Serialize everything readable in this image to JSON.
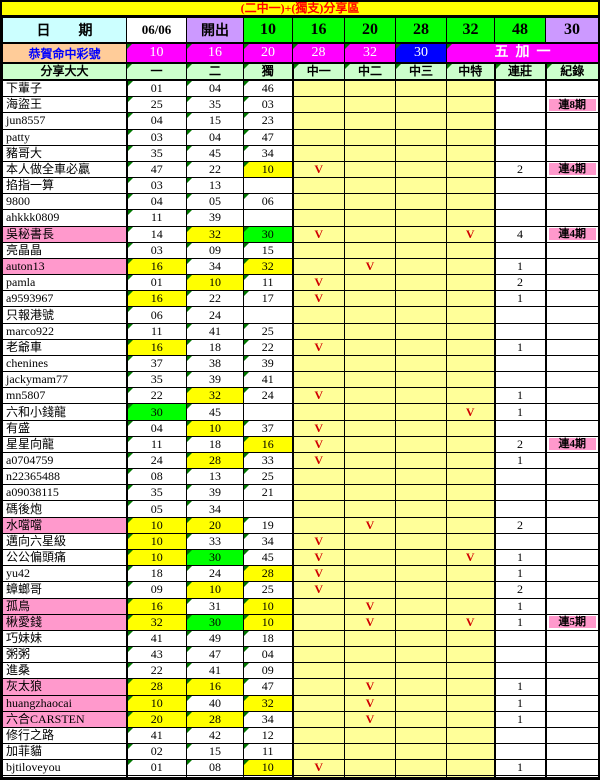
{
  "title": "(二中一)+(獨支)分享區",
  "date_row": {
    "label": "日　　期",
    "date": "06/06",
    "open_label": "開出",
    "numbers": [
      "10",
      "16",
      "20",
      "28",
      "32",
      "48"
    ],
    "special": "30"
  },
  "congrats_row": {
    "label": "恭賀命中彩號",
    "numbers": [
      "10",
      "16",
      "20",
      "28",
      "32"
    ],
    "special": "30",
    "extra": "五加一"
  },
  "columns": [
    "分享大大",
    "一",
    "二",
    "獨",
    "中一",
    "中二",
    "中三",
    "中特",
    "連莊",
    "紀錄"
  ],
  "colors": {
    "title_bg": "#FFFF00",
    "title_text": "#FF0000",
    "date_label_bg": "#CCFFFF",
    "open_bg": "#CC99FF",
    "drawn_number_bg": "#00FF00",
    "special_number_bg": "#CC99FF",
    "congrats_label_bg": "#FFCC99",
    "congrats_label_text": "#0000FF",
    "hit_number_bg": "#FF00FF",
    "special_hit_bg": "#0000FF",
    "column_header_bg": "#CCFFCC",
    "mid_column_bg": "#FFFF99",
    "match_highlight_bg": "#FFFF00",
    "special_match_bg": "#00FF00",
    "name_highlight_bg": "#FF99CC",
    "record_badge_bg": "#FF99CC",
    "mark_color": "#D00000"
  },
  "rows": [
    {
      "name": "下輩子",
      "hl": false,
      "nums": [
        [
          "01",
          "w"
        ],
        [
          "04",
          "w"
        ],
        [
          "46",
          "w"
        ]
      ],
      "marks": [
        "",
        "",
        "",
        ""
      ],
      "streak": "",
      "record": ""
    },
    {
      "name": "海盜王",
      "hl": false,
      "nums": [
        [
          "25",
          "w"
        ],
        [
          "35",
          "w"
        ],
        [
          "03",
          "w"
        ]
      ],
      "marks": [
        "",
        "",
        "",
        ""
      ],
      "streak": "",
      "record": "連8期"
    },
    {
      "name": "jun8557",
      "hl": false,
      "nums": [
        [
          "04",
          "w"
        ],
        [
          "15",
          "w"
        ],
        [
          "23",
          "w"
        ]
      ],
      "marks": [
        "",
        "",
        "",
        ""
      ],
      "streak": "",
      "record": ""
    },
    {
      "name": "patty",
      "hl": false,
      "nums": [
        [
          "03",
          "w"
        ],
        [
          "04",
          "w"
        ],
        [
          "47",
          "w"
        ]
      ],
      "marks": [
        "",
        "",
        "",
        ""
      ],
      "streak": "",
      "record": ""
    },
    {
      "name": "豬哥大",
      "hl": false,
      "nums": [
        [
          "35",
          "w"
        ],
        [
          "45",
          "w"
        ],
        [
          "34",
          "w"
        ]
      ],
      "marks": [
        "",
        "",
        "",
        ""
      ],
      "streak": "",
      "record": ""
    },
    {
      "name": "本人做全車必贏",
      "hl": false,
      "nums": [
        [
          "47",
          "w"
        ],
        [
          "22",
          "w"
        ],
        [
          "10",
          "y"
        ]
      ],
      "marks": [
        "V",
        "",
        "",
        ""
      ],
      "streak": "2",
      "record": "連4期"
    },
    {
      "name": "掐指一算",
      "hl": false,
      "nums": [
        [
          "03",
          "w"
        ],
        [
          "13",
          "w"
        ],
        [
          "",
          "w"
        ]
      ],
      "marks": [
        "",
        "",
        "",
        ""
      ],
      "streak": "",
      "record": ""
    },
    {
      "name": "9800",
      "hl": false,
      "nums": [
        [
          "04",
          "w"
        ],
        [
          "05",
          "w"
        ],
        [
          "06",
          "w"
        ]
      ],
      "marks": [
        "",
        "",
        "",
        ""
      ],
      "streak": "",
      "record": ""
    },
    {
      "name": "ahkkk0809",
      "hl": false,
      "nums": [
        [
          "11",
          "w"
        ],
        [
          "39",
          "w"
        ],
        [
          "",
          "w"
        ]
      ],
      "marks": [
        "",
        "",
        "",
        ""
      ],
      "streak": "",
      "record": ""
    },
    {
      "name": "吳秘書長",
      "hl": true,
      "nums": [
        [
          "14",
          "w"
        ],
        [
          "32",
          "y"
        ],
        [
          "30",
          "g"
        ]
      ],
      "marks": [
        "V",
        "",
        "",
        "V"
      ],
      "streak": "4",
      "record": "連4期"
    },
    {
      "name": "亮晶晶",
      "hl": false,
      "nums": [
        [
          "03",
          "w"
        ],
        [
          "09",
          "w"
        ],
        [
          "15",
          "w"
        ]
      ],
      "marks": [
        "",
        "",
        "",
        ""
      ],
      "streak": "",
      "record": ""
    },
    {
      "name": "auton13",
      "hl": true,
      "nums": [
        [
          "16",
          "y"
        ],
        [
          "34",
          "w"
        ],
        [
          "32",
          "y"
        ]
      ],
      "marks": [
        "",
        "V",
        "",
        ""
      ],
      "streak": "1",
      "record": ""
    },
    {
      "name": "pamla",
      "hl": false,
      "nums": [
        [
          "01",
          "w"
        ],
        [
          "10",
          "y"
        ],
        [
          "11",
          "w"
        ]
      ],
      "marks": [
        "V",
        "",
        "",
        ""
      ],
      "streak": "2",
      "record": ""
    },
    {
      "name": "a9593967",
      "hl": false,
      "nums": [
        [
          "16",
          "y"
        ],
        [
          "22",
          "w"
        ],
        [
          "17",
          "w"
        ]
      ],
      "marks": [
        "V",
        "",
        "",
        ""
      ],
      "streak": "1",
      "record": ""
    },
    {
      "name": "只報港號",
      "hl": false,
      "nums": [
        [
          "06",
          "w"
        ],
        [
          "24",
          "w"
        ],
        [
          "",
          "w"
        ]
      ],
      "marks": [
        "",
        "",
        "",
        ""
      ],
      "streak": "",
      "record": ""
    },
    {
      "name": "marco922",
      "hl": false,
      "nums": [
        [
          "11",
          "w"
        ],
        [
          "41",
          "w"
        ],
        [
          "25",
          "w"
        ]
      ],
      "marks": [
        "",
        "",
        "",
        ""
      ],
      "streak": "",
      "record": ""
    },
    {
      "name": "老爺車",
      "hl": false,
      "nums": [
        [
          "16",
          "y"
        ],
        [
          "18",
          "w"
        ],
        [
          "22",
          "w"
        ]
      ],
      "marks": [
        "V",
        "",
        "",
        ""
      ],
      "streak": "1",
      "record": ""
    },
    {
      "name": "chenines",
      "hl": false,
      "nums": [
        [
          "37",
          "w"
        ],
        [
          "38",
          "w"
        ],
        [
          "39",
          "w"
        ]
      ],
      "marks": [
        "",
        "",
        "",
        ""
      ],
      "streak": "",
      "record": ""
    },
    {
      "name": "jackymam77",
      "hl": false,
      "nums": [
        [
          "35",
          "w"
        ],
        [
          "39",
          "w"
        ],
        [
          "41",
          "w"
        ]
      ],
      "marks": [
        "",
        "",
        "",
        ""
      ],
      "streak": "",
      "record": ""
    },
    {
      "name": "mn5807",
      "hl": false,
      "nums": [
        [
          "22",
          "w"
        ],
        [
          "32",
          "y"
        ],
        [
          "24",
          "w"
        ]
      ],
      "marks": [
        "V",
        "",
        "",
        ""
      ],
      "streak": "1",
      "record": ""
    },
    {
      "name": "六和小錢龍",
      "hl": false,
      "nums": [
        [
          "30",
          "g"
        ],
        [
          "45",
          "w"
        ],
        [
          "",
          "w"
        ]
      ],
      "marks": [
        "",
        "",
        "",
        "V"
      ],
      "streak": "1",
      "record": ""
    },
    {
      "name": "有盛",
      "hl": false,
      "nums": [
        [
          "04",
          "w"
        ],
        [
          "10",
          "y"
        ],
        [
          "37",
          "w"
        ]
      ],
      "marks": [
        "V",
        "",
        "",
        ""
      ],
      "streak": "",
      "record": ""
    },
    {
      "name": "星星向龍",
      "hl": false,
      "nums": [
        [
          "11",
          "w"
        ],
        [
          "18",
          "w"
        ],
        [
          "16",
          "y"
        ]
      ],
      "marks": [
        "V",
        "",
        "",
        ""
      ],
      "streak": "2",
      "record": "連4期"
    },
    {
      "name": "a0704759",
      "hl": false,
      "nums": [
        [
          "24",
          "w"
        ],
        [
          "28",
          "y"
        ],
        [
          "33",
          "w"
        ]
      ],
      "marks": [
        "V",
        "",
        "",
        ""
      ],
      "streak": "1",
      "record": ""
    },
    {
      "name": "n22365488",
      "hl": false,
      "nums": [
        [
          "08",
          "w"
        ],
        [
          "13",
          "w"
        ],
        [
          "25",
          "w"
        ]
      ],
      "marks": [
        "",
        "",
        "",
        ""
      ],
      "streak": "",
      "record": ""
    },
    {
      "name": "a09038115",
      "hl": false,
      "nums": [
        [
          "35",
          "w"
        ],
        [
          "39",
          "w"
        ],
        [
          "21",
          "w"
        ]
      ],
      "marks": [
        "",
        "",
        "",
        ""
      ],
      "streak": "",
      "record": ""
    },
    {
      "name": "碼後炮",
      "hl": false,
      "nums": [
        [
          "05",
          "w"
        ],
        [
          "34",
          "w"
        ],
        [
          "",
          "w"
        ]
      ],
      "marks": [
        "",
        "",
        "",
        ""
      ],
      "streak": "",
      "record": ""
    },
    {
      "name": "水噹噹",
      "hl": true,
      "nums": [
        [
          "10",
          "y"
        ],
        [
          "20",
          "y"
        ],
        [
          "19",
          "w"
        ]
      ],
      "marks": [
        "",
        "V",
        "",
        ""
      ],
      "streak": "2",
      "record": ""
    },
    {
      "name": "邁向六星級",
      "hl": false,
      "nums": [
        [
          "10",
          "y"
        ],
        [
          "33",
          "w"
        ],
        [
          "34",
          "w"
        ]
      ],
      "marks": [
        "V",
        "",
        "",
        ""
      ],
      "streak": "",
      "record": ""
    },
    {
      "name": "公公偏頭痛",
      "hl": false,
      "nums": [
        [
          "10",
          "y"
        ],
        [
          "30",
          "g"
        ],
        [
          "45",
          "w"
        ]
      ],
      "marks": [
        "V",
        "",
        "",
        "V"
      ],
      "streak": "1",
      "record": ""
    },
    {
      "name": "yu42",
      "hl": false,
      "nums": [
        [
          "18",
          "w"
        ],
        [
          "24",
          "w"
        ],
        [
          "28",
          "y"
        ]
      ],
      "marks": [
        "V",
        "",
        "",
        ""
      ],
      "streak": "1",
      "record": ""
    },
    {
      "name": "蟑螂哥",
      "hl": false,
      "nums": [
        [
          "09",
          "w"
        ],
        [
          "10",
          "y"
        ],
        [
          "25",
          "w"
        ]
      ],
      "marks": [
        "V",
        "",
        "",
        ""
      ],
      "streak": "2",
      "record": ""
    },
    {
      "name": "孤鳥",
      "hl": true,
      "nums": [
        [
          "16",
          "y"
        ],
        [
          "31",
          "w"
        ],
        [
          "10",
          "y"
        ]
      ],
      "marks": [
        "",
        "V",
        "",
        ""
      ],
      "streak": "1",
      "record": ""
    },
    {
      "name": "楸愛錢",
      "hl": true,
      "nums": [
        [
          "32",
          "y"
        ],
        [
          "30",
          "g"
        ],
        [
          "10",
          "y"
        ]
      ],
      "marks": [
        "",
        "V",
        "",
        "V"
      ],
      "streak": "1",
      "record": "連5期"
    },
    {
      "name": "巧妹妹",
      "hl": false,
      "nums": [
        [
          "41",
          "w"
        ],
        [
          "49",
          "w"
        ],
        [
          "18",
          "w"
        ]
      ],
      "marks": [
        "",
        "",
        "",
        ""
      ],
      "streak": "",
      "record": ""
    },
    {
      "name": "粥粥",
      "hl": false,
      "nums": [
        [
          "43",
          "w"
        ],
        [
          "47",
          "w"
        ],
        [
          "04",
          "w"
        ]
      ],
      "marks": [
        "",
        "",
        "",
        ""
      ],
      "streak": "",
      "record": ""
    },
    {
      "name": "進桑",
      "hl": false,
      "nums": [
        [
          "22",
          "w"
        ],
        [
          "41",
          "w"
        ],
        [
          "09",
          "w"
        ]
      ],
      "marks": [
        "",
        "",
        "",
        ""
      ],
      "streak": "",
      "record": ""
    },
    {
      "name": "灰太狼",
      "hl": true,
      "nums": [
        [
          "28",
          "y"
        ],
        [
          "16",
          "y"
        ],
        [
          "47",
          "w"
        ]
      ],
      "marks": [
        "",
        "V",
        "",
        ""
      ],
      "streak": "1",
      "record": ""
    },
    {
      "name": "huangzhaocai",
      "hl": true,
      "nums": [
        [
          "10",
          "y"
        ],
        [
          "40",
          "w"
        ],
        [
          "32",
          "y"
        ]
      ],
      "marks": [
        "",
        "V",
        "",
        ""
      ],
      "streak": "1",
      "record": ""
    },
    {
      "name": "六合CARSTEN",
      "hl": true,
      "nums": [
        [
          "20",
          "y"
        ],
        [
          "28",
          "y"
        ],
        [
          "34",
          "w"
        ]
      ],
      "marks": [
        "",
        "V",
        "",
        ""
      ],
      "streak": "1",
      "record": ""
    },
    {
      "name": "修行之路",
      "hl": false,
      "nums": [
        [
          "41",
          "w"
        ],
        [
          "42",
          "w"
        ],
        [
          "12",
          "w"
        ]
      ],
      "marks": [
        "",
        "",
        "",
        ""
      ],
      "streak": "",
      "record": ""
    },
    {
      "name": "加菲貓",
      "hl": false,
      "nums": [
        [
          "02",
          "w"
        ],
        [
          "15",
          "w"
        ],
        [
          "11",
          "w"
        ]
      ],
      "marks": [
        "",
        "",
        "",
        ""
      ],
      "streak": "",
      "record": ""
    },
    {
      "name": "bjtiloveyou",
      "hl": false,
      "nums": [
        [
          "01",
          "w"
        ],
        [
          "08",
          "w"
        ],
        [
          "10",
          "y"
        ]
      ],
      "marks": [
        "V",
        "",
        "",
        ""
      ],
      "streak": "1",
      "record": ""
    },
    {
      "name": "",
      "hl": false,
      "nums": [
        [
          "",
          "w"
        ],
        [
          "",
          "w"
        ],
        [
          "",
          "w"
        ]
      ],
      "marks": [
        "",
        "",
        "",
        ""
      ],
      "streak": "",
      "record": ""
    }
  ]
}
